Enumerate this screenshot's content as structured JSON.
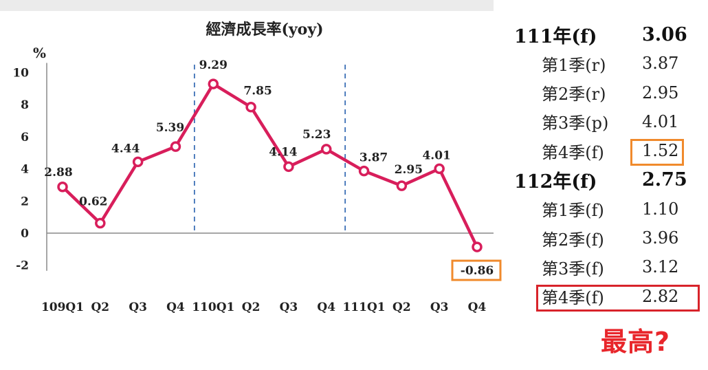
{
  "chart_data": {
    "type": "line",
    "title": "經濟成長率(yoy)",
    "ylabel": "%",
    "xlabel": "",
    "ylim": [
      -2,
      10
    ],
    "yticks": [
      -2,
      0,
      2,
      4,
      6,
      8,
      10
    ],
    "categories": [
      "109Q1",
      "Q2",
      "Q3",
      "Q4",
      "110Q1",
      "Q2",
      "Q3",
      "Q4",
      "111Q1",
      "Q2",
      "Q3",
      "Q4"
    ],
    "series": [
      {
        "values": [
          2.88,
          0.62,
          4.44,
          5.39,
          9.29,
          7.85,
          4.14,
          5.23,
          3.87,
          2.95,
          4.01,
          -0.86
        ]
      }
    ],
    "data_labels": [
      "2.88",
      "0.62",
      "4.44",
      "5.39",
      "9.29",
      "7.85",
      "4.14",
      "5.23",
      "3.87",
      "2.95",
      "4.01",
      "-0.86"
    ],
    "year_dividers_after_index": [
      3,
      7
    ],
    "grid": false,
    "line_color": "#d81e5b",
    "highlight_color": "#f08a2c"
  },
  "side_table": {
    "rows": [
      {
        "label": "111年(f)",
        "value": "3.06",
        "kind": "year"
      },
      {
        "label": "第1季(r)",
        "value": "3.87",
        "kind": "quarter"
      },
      {
        "label": "第2季(r)",
        "value": "2.95",
        "kind": "quarter"
      },
      {
        "label": "第3季(p)",
        "value": "4.01",
        "kind": "quarter"
      },
      {
        "label": "第4季(f)",
        "value": "1.52",
        "kind": "quarter",
        "highlight": "orange"
      },
      {
        "label": "112年(f)",
        "value": "2.75",
        "kind": "year"
      },
      {
        "label": "第1季(f)",
        "value": "1.10",
        "kind": "quarter"
      },
      {
        "label": "第2季(f)",
        "value": "3.96",
        "kind": "quarter"
      },
      {
        "label": "第3季(f)",
        "value": "3.12",
        "kind": "quarter"
      },
      {
        "label": "第4季(f)",
        "value": "2.82",
        "kind": "quarter",
        "highlight": "red"
      }
    ],
    "callout": "最高?",
    "colors": {
      "orange": "#f08a2c",
      "red": "#d8232a",
      "callout": "#e8262b"
    }
  }
}
